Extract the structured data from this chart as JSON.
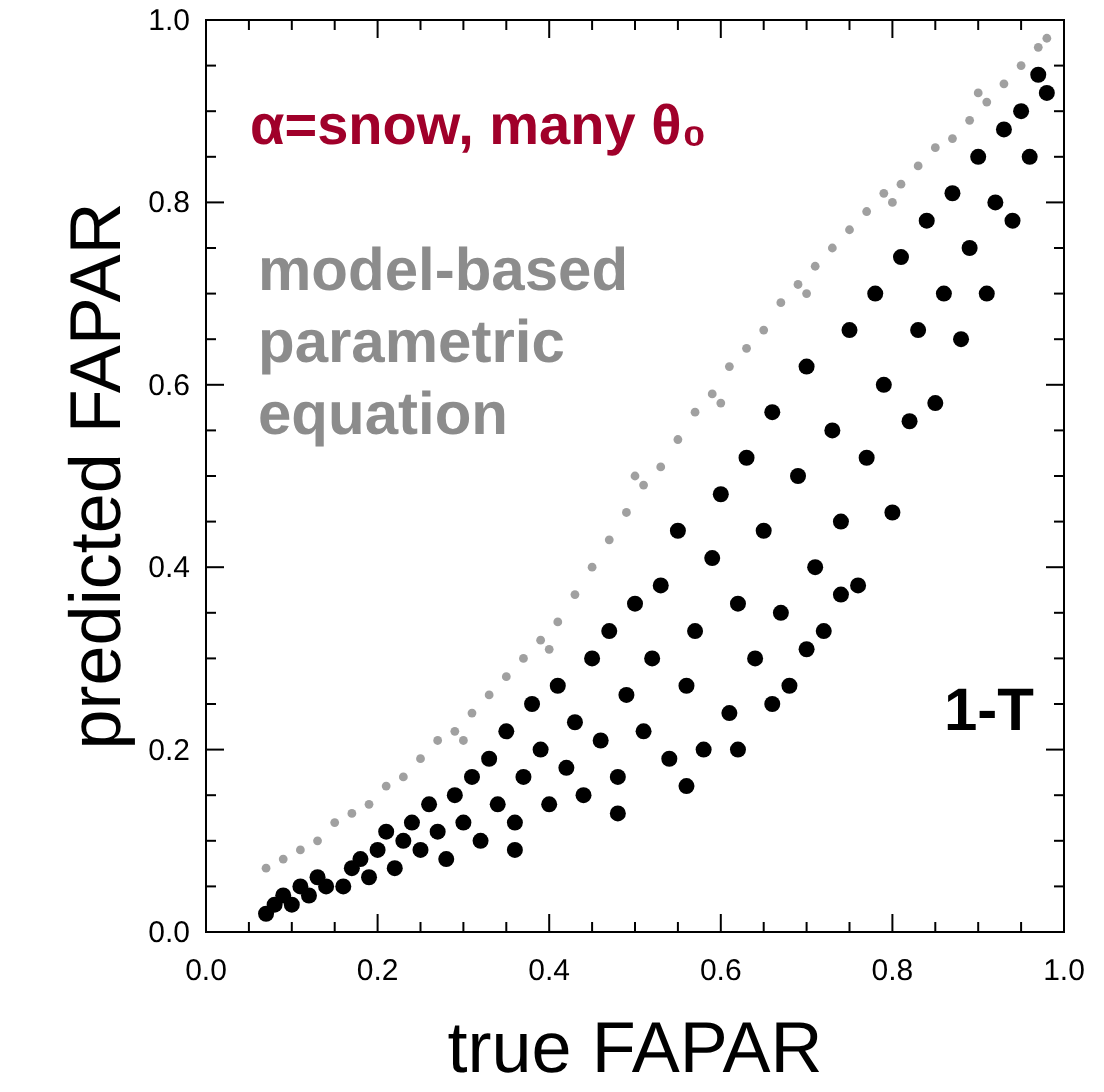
{
  "chart_data": {
    "type": "scatter",
    "title": "α=snow, many θ₀",
    "xlabel": "true FAPAR",
    "ylabel": "predicted FAPAR",
    "xlim": [
      0,
      1
    ],
    "ylim": [
      0,
      1
    ],
    "xticks": [
      {
        "value": 0,
        "label": "0.0"
      },
      {
        "value": 0.05,
        "label": null
      },
      {
        "value": 0.1,
        "label": null
      },
      {
        "value": 0.15,
        "label": null
      },
      {
        "value": 0.2,
        "label": "0.2"
      },
      {
        "value": 0.25,
        "label": null
      },
      {
        "value": 0.3,
        "label": null
      },
      {
        "value": 0.35,
        "label": null
      },
      {
        "value": 0.4,
        "label": "0.4"
      },
      {
        "value": 0.45,
        "label": null
      },
      {
        "value": 0.5,
        "label": null
      },
      {
        "value": 0.55,
        "label": null
      },
      {
        "value": 0.6,
        "label": "0.6"
      },
      {
        "value": 0.65,
        "label": null
      },
      {
        "value": 0.7,
        "label": null
      },
      {
        "value": 0.75,
        "label": null
      },
      {
        "value": 0.8,
        "label": "0.8"
      },
      {
        "value": 0.85,
        "label": null
      },
      {
        "value": 0.9,
        "label": null
      },
      {
        "value": 0.95,
        "label": null
      },
      {
        "value": 1,
        "label": "1.0"
      }
    ],
    "yticks": [
      {
        "value": 0,
        "label": "0.0"
      },
      {
        "value": 0.05,
        "label": null
      },
      {
        "value": 0.1,
        "label": null
      },
      {
        "value": 0.15,
        "label": null
      },
      {
        "value": 0.2,
        "label": "0.2"
      },
      {
        "value": 0.25,
        "label": null
      },
      {
        "value": 0.3,
        "label": null
      },
      {
        "value": 0.35,
        "label": null
      },
      {
        "value": 0.4,
        "label": "0.4"
      },
      {
        "value": 0.45,
        "label": null
      },
      {
        "value": 0.5,
        "label": null
      },
      {
        "value": 0.55,
        "label": null
      },
      {
        "value": 0.6,
        "label": "0.6"
      },
      {
        "value": 0.65,
        "label": null
      },
      {
        "value": 0.7,
        "label": null
      },
      {
        "value": 0.75,
        "label": null
      },
      {
        "value": 0.8,
        "label": "0.8"
      },
      {
        "value": 0.85,
        "label": null
      },
      {
        "value": 0.9,
        "label": null
      },
      {
        "value": 0.95,
        "label": null
      },
      {
        "value": 1,
        "label": "1.0"
      }
    ],
    "marker": "circle",
    "series": [
      {
        "name": "model-based parametric equation",
        "color": "#a0a0a0",
        "x": [
          0.07,
          0.09,
          0.11,
          0.13,
          0.15,
          0.17,
          0.19,
          0.21,
          0.23,
          0.25,
          0.27,
          0.29,
          0.31,
          0.33,
          0.35,
          0.37,
          0.39,
          0.41,
          0.43,
          0.45,
          0.47,
          0.49,
          0.51,
          0.53,
          0.55,
          0.57,
          0.59,
          0.61,
          0.63,
          0.65,
          0.67,
          0.69,
          0.71,
          0.73,
          0.75,
          0.77,
          0.79,
          0.81,
          0.83,
          0.85,
          0.87,
          0.89,
          0.91,
          0.93,
          0.95,
          0.97,
          0.98,
          0.3,
          0.4,
          0.5,
          0.6,
          0.7,
          0.8,
          0.9
        ],
        "values": [
          0.07,
          0.08,
          0.09,
          0.1,
          0.12,
          0.13,
          0.14,
          0.16,
          0.17,
          0.19,
          0.21,
          0.22,
          0.24,
          0.26,
          0.28,
          0.3,
          0.32,
          0.34,
          0.37,
          0.4,
          0.43,
          0.46,
          0.49,
          0.51,
          0.54,
          0.57,
          0.59,
          0.62,
          0.64,
          0.66,
          0.69,
          0.71,
          0.73,
          0.75,
          0.77,
          0.79,
          0.81,
          0.82,
          0.84,
          0.86,
          0.87,
          0.89,
          0.91,
          0.93,
          0.95,
          0.97,
          0.98,
          0.21,
          0.31,
          0.5,
          0.58,
          0.7,
          0.8,
          0.92
        ]
      },
      {
        "name": "1-T",
        "color": "#000000",
        "x": [
          0.07,
          0.08,
          0.09,
          0.1,
          0.11,
          0.12,
          0.13,
          0.14,
          0.16,
          0.17,
          0.18,
          0.19,
          0.2,
          0.21,
          0.22,
          0.23,
          0.24,
          0.25,
          0.26,
          0.27,
          0.28,
          0.29,
          0.3,
          0.31,
          0.32,
          0.33,
          0.34,
          0.35,
          0.36,
          0.37,
          0.38,
          0.39,
          0.4,
          0.41,
          0.42,
          0.43,
          0.44,
          0.45,
          0.46,
          0.47,
          0.48,
          0.49,
          0.5,
          0.51,
          0.52,
          0.53,
          0.54,
          0.55,
          0.56,
          0.57,
          0.58,
          0.59,
          0.6,
          0.61,
          0.62,
          0.63,
          0.64,
          0.65,
          0.66,
          0.67,
          0.68,
          0.69,
          0.7,
          0.71,
          0.72,
          0.73,
          0.74,
          0.75,
          0.76,
          0.77,
          0.78,
          0.79,
          0.8,
          0.81,
          0.82,
          0.83,
          0.84,
          0.85,
          0.86,
          0.87,
          0.88,
          0.89,
          0.9,
          0.91,
          0.92,
          0.93,
          0.94,
          0.95,
          0.96,
          0.97,
          0.98,
          0.62,
          0.66,
          0.7,
          0.74,
          0.56,
          0.48,
          0.36
        ],
        "values": [
          0.02,
          0.03,
          0.04,
          0.03,
          0.05,
          0.04,
          0.06,
          0.05,
          0.05,
          0.07,
          0.08,
          0.06,
          0.09,
          0.11,
          0.07,
          0.1,
          0.12,
          0.09,
          0.14,
          0.11,
          0.08,
          0.15,
          0.12,
          0.17,
          0.1,
          0.19,
          0.14,
          0.22,
          0.12,
          0.17,
          0.25,
          0.2,
          0.14,
          0.27,
          0.18,
          0.23,
          0.15,
          0.3,
          0.21,
          0.33,
          0.17,
          0.26,
          0.36,
          0.22,
          0.3,
          0.38,
          0.19,
          0.44,
          0.27,
          0.33,
          0.2,
          0.41,
          0.48,
          0.24,
          0.36,
          0.52,
          0.3,
          0.44,
          0.57,
          0.35,
          0.27,
          0.5,
          0.62,
          0.4,
          0.33,
          0.55,
          0.45,
          0.66,
          0.38,
          0.52,
          0.7,
          0.6,
          0.46,
          0.74,
          0.56,
          0.66,
          0.78,
          0.58,
          0.7,
          0.81,
          0.65,
          0.75,
          0.85,
          0.7,
          0.8,
          0.88,
          0.78,
          0.9,
          0.85,
          0.94,
          0.92,
          0.2,
          0.25,
          0.31,
          0.37,
          0.16,
          0.13,
          0.09
        ]
      }
    ]
  }
}
